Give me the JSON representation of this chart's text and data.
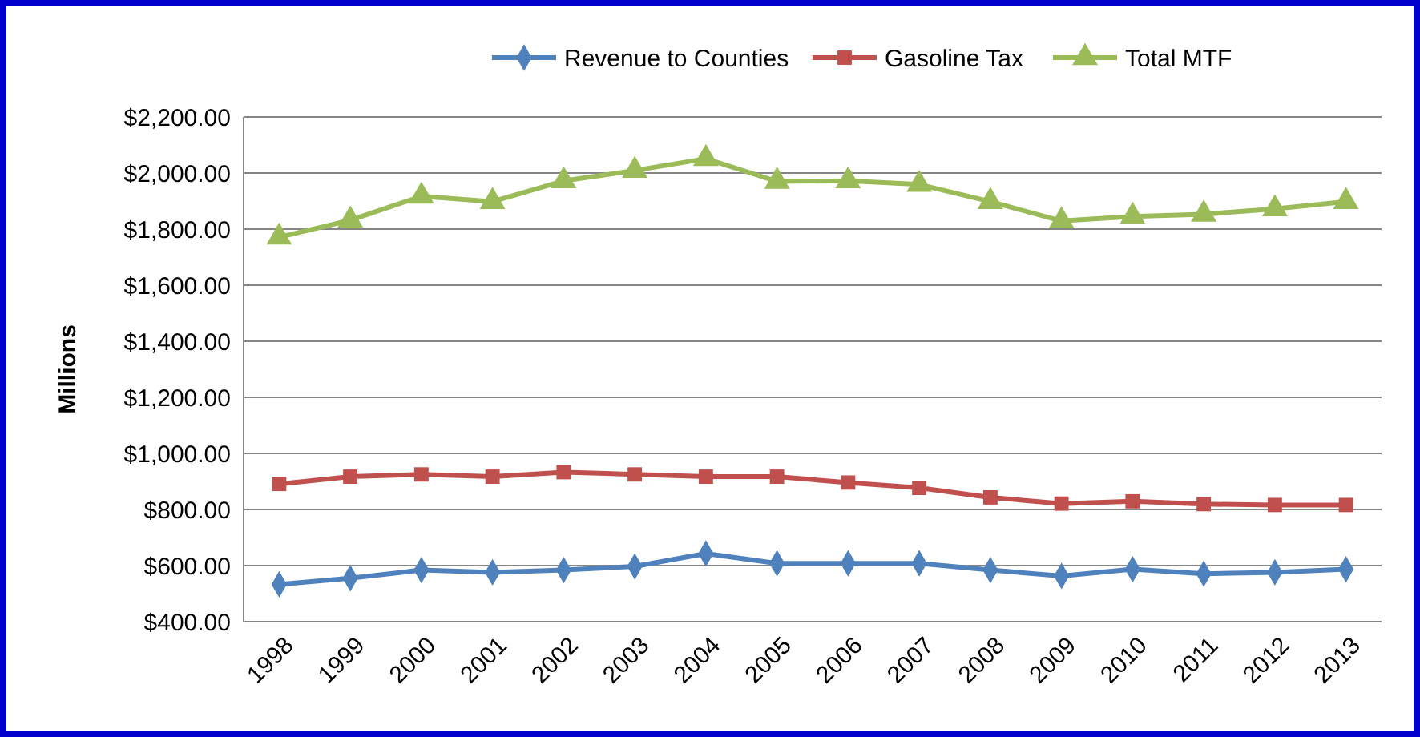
{
  "chart_data": {
    "type": "line",
    "ylabel": "Millions",
    "categories": [
      "1998",
      "1999",
      "2000",
      "2001",
      "2002",
      "2003",
      "2004",
      "2005",
      "2006",
      "2007",
      "2008",
      "2009",
      "2010",
      "2011",
      "2012",
      "2013"
    ],
    "series": [
      {
        "name": "Revenue to Counties",
        "color": "#4f81bd",
        "marker": "diamond",
        "values": [
          533,
          555,
          584,
          576,
          584,
          597,
          643,
          608,
          608,
          608,
          584,
          563,
          587,
          571,
          576,
          587
        ]
      },
      {
        "name": "Gasoline Tax",
        "color": "#c0504d",
        "marker": "square",
        "values": [
          891,
          917,
          925,
          917,
          933,
          925,
          917,
          917,
          896,
          877,
          843,
          821,
          829,
          819,
          816,
          816
        ]
      },
      {
        "name": "Total MTF",
        "color": "#9bbb59",
        "marker": "triangle",
        "values": [
          1771,
          1832,
          1917,
          1898,
          1972,
          2009,
          2051,
          1970,
          1972,
          1959,
          1898,
          1829,
          1845,
          1853,
          1872,
          1898
        ]
      }
    ],
    "ylim": [
      400,
      2200
    ],
    "yticks": [
      {
        "value": 400,
        "label": "$400.00"
      },
      {
        "value": 600,
        "label": "$600.00"
      },
      {
        "value": 800,
        "label": "$800.00"
      },
      {
        "value": 1000,
        "label": "$1,000.00"
      },
      {
        "value": 1200,
        "label": "$1,200.00"
      },
      {
        "value": 1400,
        "label": "$1,400.00"
      },
      {
        "value": 1600,
        "label": "$1,600.00"
      },
      {
        "value": 1800,
        "label": "$1,800.00"
      },
      {
        "value": 2000,
        "label": "$2,000.00"
      },
      {
        "value": 2200,
        "label": "$2,200.00"
      }
    ],
    "grid": "y",
    "legend": "top",
    "line_style": "solid"
  }
}
